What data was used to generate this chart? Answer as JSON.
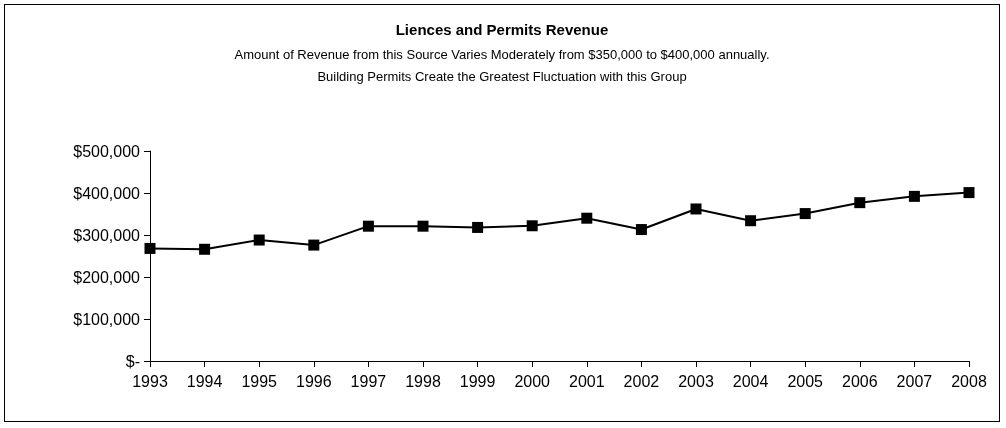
{
  "chart_data": {
    "type": "line",
    "title": "Liences and Permits Revenue",
    "subtitle": "Amount of Revenue from this Source Varies Moderately from $350,000 to $400,000 annually.\nBuilding Permits Create the Greatest Fluctuation with this Group",
    "categories": [
      "1993",
      "1994",
      "1995",
      "1996",
      "1997",
      "1998",
      "1999",
      "2000",
      "2001",
      "2002",
      "2003",
      "2004",
      "2005",
      "2006",
      "2007",
      "2008"
    ],
    "series": [
      {
        "color": "#000000",
        "values": [
          268000,
          266000,
          288000,
          276000,
          321000,
          321000,
          318000,
          322000,
          340000,
          313000,
          362000,
          334000,
          351000,
          377000,
          392000,
          401000
        ]
      }
    ],
    "ylim": [
      0,
      500000
    ],
    "yticks": [
      {
        "value": 0,
        "label": "$-"
      },
      {
        "value": 100000,
        "label": "$100,000"
      },
      {
        "value": 200000,
        "label": "$200,000"
      },
      {
        "value": 300000,
        "label": "$300,000"
      },
      {
        "value": 400000,
        "label": "$400,000"
      },
      {
        "value": 500000,
        "label": "$500,000"
      }
    ],
    "grid": false,
    "marker": "square",
    "line_style": "solid"
  }
}
